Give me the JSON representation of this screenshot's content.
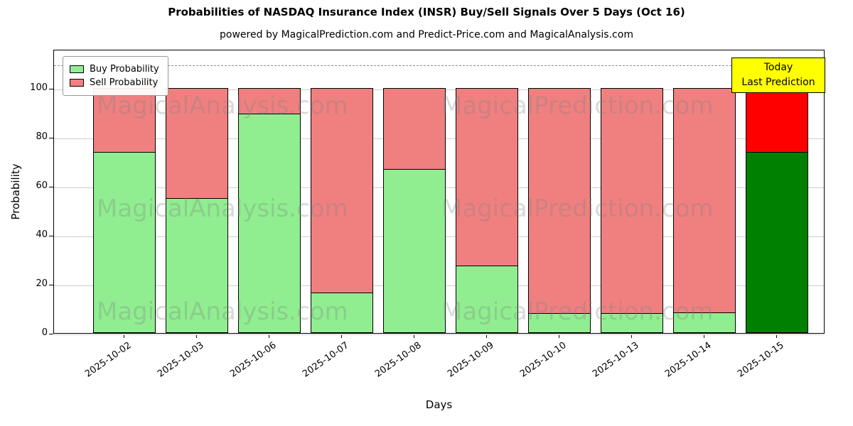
{
  "chart_data": {
    "type": "bar",
    "stacked": true,
    "title": "Probabilities of NASDAQ Insurance Index (INSR) Buy/Sell Signals Over 5 Days (Oct 16)",
    "subtitle": "powered by MagicalPrediction.com and Predict-Price.com and MagicalAnalysis.com",
    "xlabel": "Days",
    "ylabel": "Probability",
    "ylim": [
      0,
      116
    ],
    "yticks": [
      0,
      20,
      40,
      60,
      80,
      100
    ],
    "grid": true,
    "dashed_line_y": 110,
    "categories": [
      "2025-10-02",
      "2025-10-03",
      "2025-10-06",
      "2025-10-07",
      "2025-10-08",
      "2025-10-09",
      "2025-10-10",
      "2025-10-13",
      "2025-10-14",
      "2025-10-15"
    ],
    "series": [
      {
        "name": "Buy Probability",
        "color": "#90EE90",
        "values": [
          74,
          55,
          89.5,
          16.5,
          67,
          27.5,
          8,
          8,
          8.5,
          74
        ]
      },
      {
        "name": "Sell Probability",
        "color": "#F08080",
        "values": [
          26,
          45,
          10.5,
          83.5,
          33,
          72.5,
          92,
          92,
          91.5,
          26
        ]
      }
    ],
    "last_bar_colors": {
      "buy": "#008000",
      "sell": "#FF0000"
    },
    "legend": {
      "position": "upper-left",
      "entries": [
        {
          "label": "Buy Probability",
          "color": "#90EE90"
        },
        {
          "label": "Sell Probability",
          "color": "#F08080"
        }
      ]
    },
    "annotation": {
      "lines": [
        "Today",
        "Last Prediction"
      ],
      "bg_color": "#FFFF00"
    },
    "watermarks": [
      {
        "text": "MagicalAnalysis.com"
      },
      {
        "text": "MagicalPrediction.com"
      }
    ]
  }
}
